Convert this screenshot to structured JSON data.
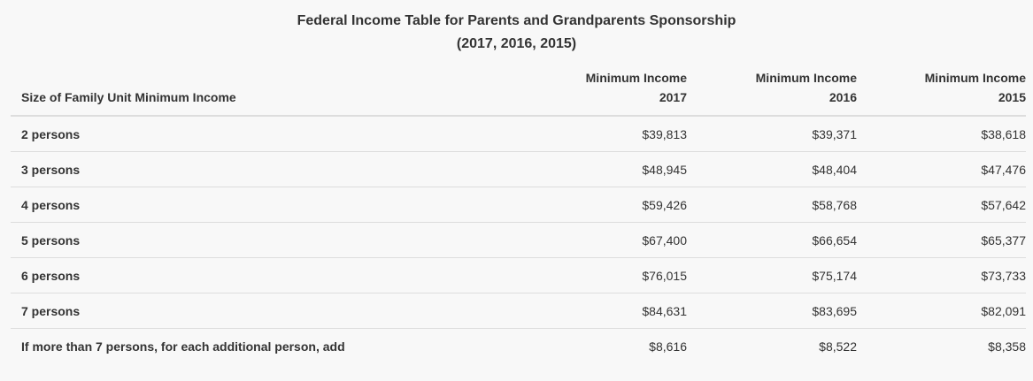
{
  "caption": {
    "line1": "Federal Income Table for Parents and Grandparents Sponsorship",
    "line2": "(2017, 2016, 2015)"
  },
  "table": {
    "headers": [
      {
        "line1": "",
        "line2": "Size of Family Unit Minimum Income"
      },
      {
        "line1": "Minimum Income",
        "line2": "2017"
      },
      {
        "line1": "Minimum Income",
        "line2": "2016"
      },
      {
        "line1": "Minimum Income",
        "line2": "2015"
      }
    ],
    "rows": [
      {
        "label": "2 persons",
        "values": [
          "$39,813",
          "$39,371",
          "$38,618"
        ]
      },
      {
        "label": "3 persons",
        "values": [
          "$48,945",
          "$48,404",
          "$47,476"
        ]
      },
      {
        "label": "4 persons",
        "values": [
          "$59,426",
          "$58,768",
          "$57,642"
        ]
      },
      {
        "label": "5 persons",
        "values": [
          "$67,400",
          "$66,654",
          "$65,377"
        ]
      },
      {
        "label": "6 persons",
        "values": [
          "$76,015",
          "$75,174",
          "$73,733"
        ]
      },
      {
        "label": "7 persons",
        "values": [
          "$84,631",
          "$83,695",
          "$82,091"
        ]
      },
      {
        "label": "If more than 7 persons, for each additional person, add",
        "values": [
          "$8,616",
          "$8,522",
          "$8,358"
        ]
      }
    ]
  },
  "colors": {
    "background": "#f8f8f8",
    "text": "#333333",
    "rule": "#dddddd"
  }
}
